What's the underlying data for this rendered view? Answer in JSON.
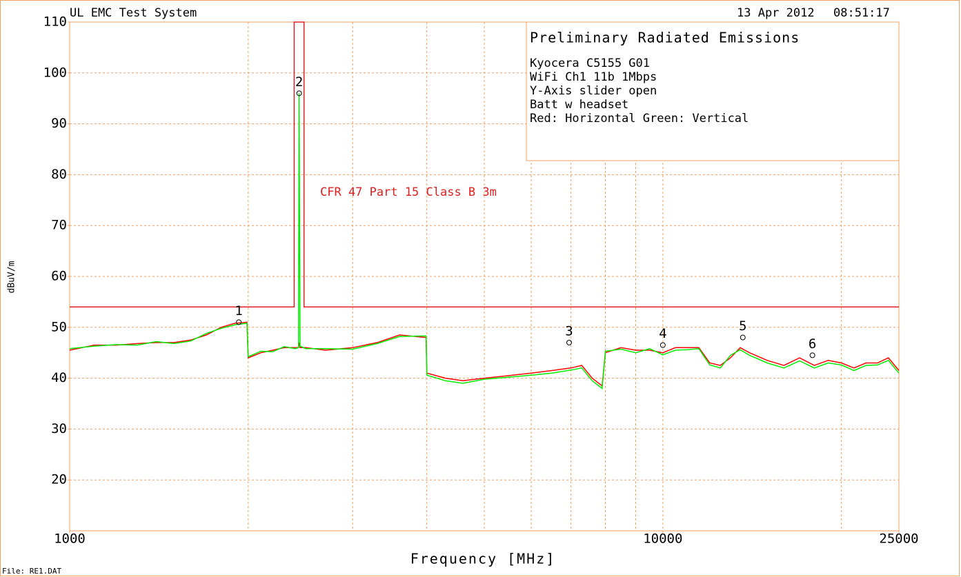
{
  "chart_data": {
    "type": "line",
    "header_left": "UL EMC Test System",
    "date": "13 Apr 2012",
    "time": "08:51:17",
    "info_title": "Preliminary Radiated Emissions",
    "info_lines": [
      "Kyocera C5155 G01",
      "WiFi Ch1 11b 1Mbps",
      "Y-Axis slider open",
      "Batt w headset",
      "Red: Horizontal  Green: Vertical"
    ],
    "limit_label": "CFR 47 Part 15  Class B 3m",
    "ylabel": "dBuV/m",
    "xlabel": "Frequency [MHz]",
    "file": "File: RE1.DAT",
    "log_x": true,
    "grid": true,
    "xlim": [
      1000,
      25000
    ],
    "xticks": [
      1000,
      10000,
      25000
    ],
    "xgrid": [
      2000,
      3000,
      4000,
      5000,
      6000,
      7000,
      8000,
      9000,
      10000,
      20000
    ],
    "ylim": [
      10,
      110
    ],
    "yticks": [
      20,
      30,
      40,
      50,
      60,
      70,
      80,
      90,
      100,
      110
    ],
    "ygrid": [
      20,
      30,
      40,
      50,
      60,
      70,
      80,
      90,
      100
    ],
    "x": [
      1000,
      1100,
      1200,
      1300,
      1400,
      1500,
      1600,
      1700,
      1800,
      1900,
      1990,
      2000,
      2100,
      2200,
      2300,
      2400,
      2430,
      2437,
      2445,
      2500,
      2700,
      3000,
      3300,
      3600,
      3990,
      4000,
      4300,
      4600,
      5000,
      5500,
      6000,
      6500,
      7000,
      7300,
      7600,
      7900,
      8000,
      8500,
      9000,
      9500,
      10000,
      10500,
      11000,
      11500,
      12000,
      12500,
      13000,
      13500,
      14000,
      15000,
      16000,
      17000,
      18000,
      19000,
      20000,
      21000,
      22000,
      23000,
      24000,
      25000
    ],
    "series": [
      {
        "name": "Horizontal",
        "color": "#ff0000",
        "values": [
          45.5,
          46.5,
          46.5,
          46.8,
          47,
          47,
          47.5,
          48.5,
          50,
          50.8,
          51,
          44,
          45,
          45.5,
          46,
          46,
          46,
          47,
          46,
          46,
          45.5,
          46,
          47,
          48.5,
          48,
          41,
          40,
          39.5,
          40,
          40.5,
          41,
          41.5,
          42,
          42.5,
          40,
          38.5,
          45,
          46,
          45.5,
          45.5,
          45,
          46,
          46,
          46,
          43,
          42.5,
          44,
          46,
          45,
          43.5,
          42.5,
          44,
          42.5,
          43.5,
          43,
          42,
          43,
          43,
          44,
          41.5
        ]
      },
      {
        "name": "Vertical",
        "color": "#00ee00",
        "values": [
          45.8,
          46.3,
          46.6,
          46.5,
          47.2,
          46.8,
          47.3,
          48.8,
          49.8,
          50.5,
          50.8,
          44.2,
          45.3,
          45.2,
          46.2,
          45.8,
          46,
          96,
          46.3,
          45.8,
          45.8,
          45.7,
          46.8,
          48.2,
          48.3,
          40.6,
          39.5,
          39,
          39.8,
          40.2,
          40.6,
          41,
          41.6,
          42,
          39.5,
          38,
          45.3,
          45.7,
          45,
          45.8,
          44.6,
          45.5,
          45.6,
          45.8,
          42.6,
          42,
          44.5,
          45.6,
          44.5,
          43,
          42,
          43.4,
          42,
          43,
          42.6,
          41.5,
          42.5,
          42.6,
          43.5,
          41
        ]
      }
    ],
    "limit": {
      "name": "Limit",
      "color": "#e02020",
      "x": [
        1000,
        2390,
        2390,
        2483.5,
        2483.5,
        25000
      ],
      "values": [
        54,
        54,
        110,
        110,
        54,
        54
      ]
    },
    "markers": [
      {
        "label": "1",
        "x": 1928,
        "y": 51
      },
      {
        "label": "2",
        "x": 2437,
        "y": 96
      },
      {
        "label": "3",
        "x": 6950,
        "y": 47
      },
      {
        "label": "4",
        "x": 10000,
        "y": 46.5
      },
      {
        "label": "5",
        "x": 13640,
        "y": 48
      },
      {
        "label": "6",
        "x": 17870,
        "y": 44.5
      }
    ]
  }
}
